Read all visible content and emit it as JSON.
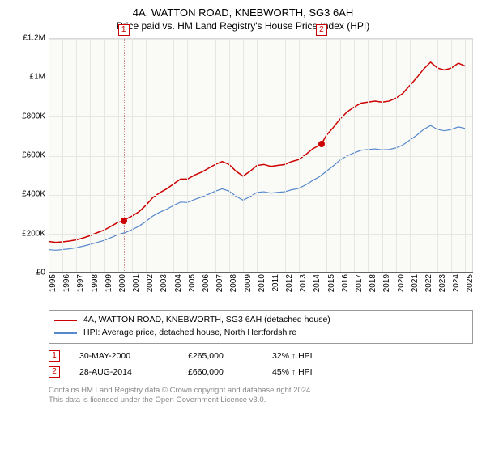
{
  "title": "4A, WATTON ROAD, KNEBWORTH, SG3 6AH",
  "subtitle": "Price paid vs. HM Land Registry's House Price Index (HPI)",
  "chart": {
    "type": "line",
    "background_color": "#fafaf7",
    "grid_color": "#e6e6e3",
    "axis_color": "#666666",
    "title_fontsize": 13,
    "label_fontsize": 10,
    "y": {
      "min": 0,
      "max": 1200000,
      "ticks": [
        0,
        200000,
        400000,
        600000,
        800000,
        1000000,
        1200000
      ],
      "tick_labels": [
        "£0",
        "£200K",
        "£400K",
        "£600K",
        "£800K",
        "£1M",
        "£1.2M"
      ]
    },
    "x": {
      "min": 1995,
      "max": 2025.5,
      "ticks": [
        1995,
        1996,
        1997,
        1998,
        1999,
        2000,
        2001,
        2002,
        2003,
        2004,
        2005,
        2006,
        2007,
        2008,
        2009,
        2010,
        2011,
        2012,
        2013,
        2014,
        2015,
        2016,
        2017,
        2018,
        2019,
        2020,
        2021,
        2022,
        2023,
        2024,
        2025
      ],
      "tick_labels": [
        "1995",
        "1996",
        "1997",
        "1998",
        "1999",
        "2000",
        "2001",
        "2002",
        "2003",
        "2004",
        "2005",
        "2006",
        "2007",
        "2008",
        "2009",
        "2010",
        "2011",
        "2012",
        "2013",
        "2014",
        "2015",
        "2016",
        "2017",
        "2018",
        "2019",
        "2020",
        "2021",
        "2022",
        "2023",
        "2024",
        "2025"
      ]
    },
    "series": [
      {
        "name": "4A, WATTON ROAD, KNEBWORTH, SG3 6AH (detached house)",
        "color": "#cc0000",
        "line_width": 1.5,
        "points": [
          [
            1995.0,
            160000
          ],
          [
            1995.5,
            155000
          ],
          [
            1996.0,
            158000
          ],
          [
            1996.5,
            162000
          ],
          [
            1997.0,
            168000
          ],
          [
            1997.5,
            178000
          ],
          [
            1998.0,
            190000
          ],
          [
            1998.5,
            205000
          ],
          [
            1999.0,
            218000
          ],
          [
            1999.5,
            238000
          ],
          [
            2000.0,
            258000
          ],
          [
            2000.4,
            265000
          ],
          [
            2000.5,
            272000
          ],
          [
            2001.0,
            290000
          ],
          [
            2001.5,
            312000
          ],
          [
            2002.0,
            345000
          ],
          [
            2002.5,
            385000
          ],
          [
            2003.0,
            410000
          ],
          [
            2003.5,
            430000
          ],
          [
            2004.0,
            455000
          ],
          [
            2004.5,
            480000
          ],
          [
            2005.0,
            480000
          ],
          [
            2005.5,
            500000
          ],
          [
            2006.0,
            515000
          ],
          [
            2006.5,
            535000
          ],
          [
            2007.0,
            555000
          ],
          [
            2007.5,
            570000
          ],
          [
            2008.0,
            555000
          ],
          [
            2008.5,
            520000
          ],
          [
            2009.0,
            495000
          ],
          [
            2009.5,
            520000
          ],
          [
            2010.0,
            550000
          ],
          [
            2010.5,
            555000
          ],
          [
            2011.0,
            545000
          ],
          [
            2011.5,
            550000
          ],
          [
            2012.0,
            555000
          ],
          [
            2012.5,
            570000
          ],
          [
            2013.0,
            580000
          ],
          [
            2013.5,
            605000
          ],
          [
            2014.0,
            635000
          ],
          [
            2014.65,
            660000
          ],
          [
            2015.0,
            705000
          ],
          [
            2015.5,
            745000
          ],
          [
            2016.0,
            790000
          ],
          [
            2016.5,
            825000
          ],
          [
            2017.0,
            850000
          ],
          [
            2017.5,
            870000
          ],
          [
            2018.0,
            875000
          ],
          [
            2018.5,
            880000
          ],
          [
            2019.0,
            875000
          ],
          [
            2019.5,
            880000
          ],
          [
            2020.0,
            895000
          ],
          [
            2020.5,
            920000
          ],
          [
            2021.0,
            960000
          ],
          [
            2021.5,
            1000000
          ],
          [
            2022.0,
            1045000
          ],
          [
            2022.5,
            1080000
          ],
          [
            2023.0,
            1050000
          ],
          [
            2023.5,
            1040000
          ],
          [
            2024.0,
            1050000
          ],
          [
            2024.5,
            1075000
          ],
          [
            2025.0,
            1060000
          ]
        ]
      },
      {
        "name": "HPI: Average price, detached house, North Hertfordshire",
        "color": "#5588cc",
        "line_width": 1.2,
        "points": [
          [
            1995.0,
            118000
          ],
          [
            1995.5,
            115000
          ],
          [
            1996.0,
            118000
          ],
          [
            1996.5,
            122000
          ],
          [
            1997.0,
            128000
          ],
          [
            1997.5,
            136000
          ],
          [
            1998.0,
            145000
          ],
          [
            1998.5,
            155000
          ],
          [
            1999.0,
            165000
          ],
          [
            1999.5,
            180000
          ],
          [
            2000.0,
            195000
          ],
          [
            2000.5,
            205000
          ],
          [
            2001.0,
            220000
          ],
          [
            2001.5,
            238000
          ],
          [
            2002.0,
            262000
          ],
          [
            2002.5,
            290000
          ],
          [
            2003.0,
            310000
          ],
          [
            2003.5,
            325000
          ],
          [
            2004.0,
            345000
          ],
          [
            2004.5,
            362000
          ],
          [
            2005.0,
            360000
          ],
          [
            2005.5,
            375000
          ],
          [
            2006.0,
            388000
          ],
          [
            2006.5,
            402000
          ],
          [
            2007.0,
            418000
          ],
          [
            2007.5,
            430000
          ],
          [
            2008.0,
            418000
          ],
          [
            2008.5,
            392000
          ],
          [
            2009.0,
            372000
          ],
          [
            2009.5,
            390000
          ],
          [
            2010.0,
            412000
          ],
          [
            2010.5,
            415000
          ],
          [
            2011.0,
            408000
          ],
          [
            2011.5,
            412000
          ],
          [
            2012.0,
            415000
          ],
          [
            2012.5,
            425000
          ],
          [
            2013.0,
            432000
          ],
          [
            2013.5,
            450000
          ],
          [
            2014.0,
            472000
          ],
          [
            2014.5,
            492000
          ],
          [
            2015.0,
            520000
          ],
          [
            2015.5,
            548000
          ],
          [
            2016.0,
            578000
          ],
          [
            2016.5,
            600000
          ],
          [
            2017.0,
            615000
          ],
          [
            2017.5,
            628000
          ],
          [
            2018.0,
            632000
          ],
          [
            2018.5,
            635000
          ],
          [
            2019.0,
            630000
          ],
          [
            2019.5,
            632000
          ],
          [
            2020.0,
            640000
          ],
          [
            2020.5,
            655000
          ],
          [
            2021.0,
            680000
          ],
          [
            2021.5,
            705000
          ],
          [
            2022.0,
            735000
          ],
          [
            2022.5,
            755000
          ],
          [
            2023.0,
            735000
          ],
          [
            2023.5,
            728000
          ],
          [
            2024.0,
            735000
          ],
          [
            2024.5,
            748000
          ],
          [
            2025.0,
            740000
          ]
        ]
      }
    ],
    "markers": [
      {
        "label": "1",
        "x": 2000.4,
        "y_dot": 265000
      },
      {
        "label": "2",
        "x": 2014.65,
        "y_dot": 660000
      }
    ]
  },
  "legend": {
    "items": [
      {
        "color": "#cc0000",
        "label": "4A, WATTON ROAD, KNEBWORTH, SG3 6AH (detached house)"
      },
      {
        "color": "#5588cc",
        "label": "HPI: Average price, detached house, North Hertfordshire"
      }
    ]
  },
  "transactions": [
    {
      "marker": "1",
      "date": "30-MAY-2000",
      "price": "£265,000",
      "hpi": "32% ↑ HPI"
    },
    {
      "marker": "2",
      "date": "28-AUG-2014",
      "price": "£660,000",
      "hpi": "45% ↑ HPI"
    }
  ],
  "footnote_line1": "Contains HM Land Registry data © Crown copyright and database right 2024.",
  "footnote_line2": "This data is licensed under the Open Government Licence v3.0."
}
